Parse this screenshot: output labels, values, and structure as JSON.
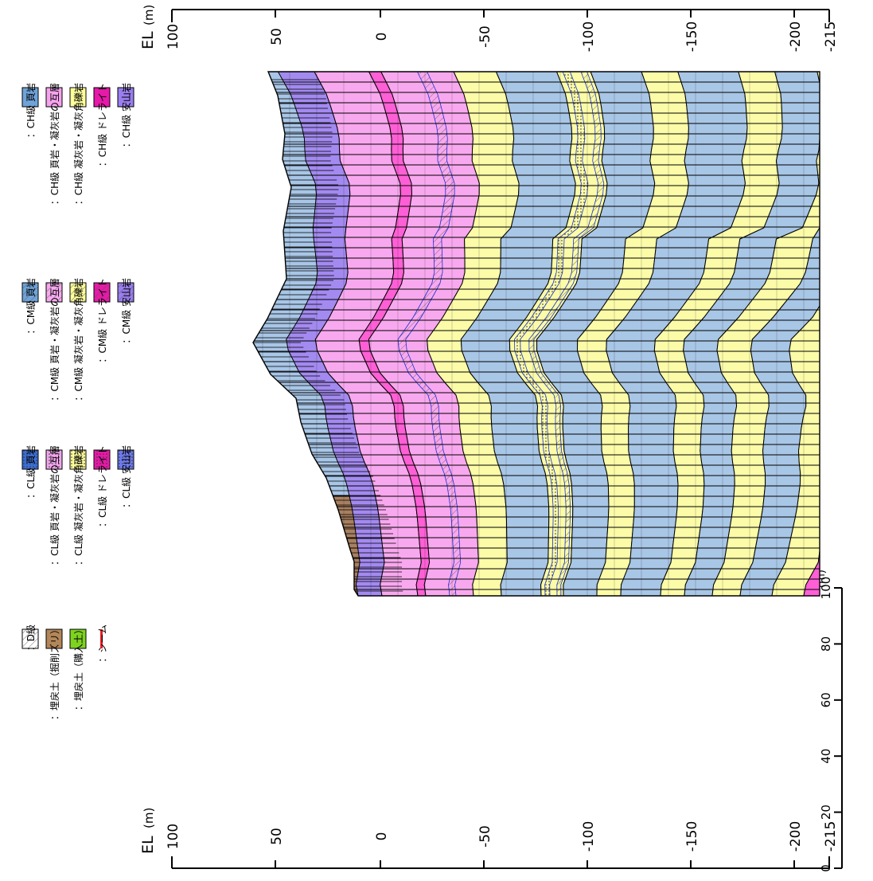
{
  "axis": {
    "el_label": "EL",
    "unit": "(m)",
    "el_ticks": [
      "100",
      "50",
      "0",
      "-50",
      "-100",
      "-150",
      "-200",
      "-215"
    ],
    "scale_ticks": [
      "0",
      "20",
      "40",
      "60",
      "80",
      "100"
    ],
    "scale_unit": "(m)"
  },
  "colors": {
    "ch_shale": "#6fa3d9",
    "cm_shale": "#6fa3d9",
    "cl_shale": "#3b6fd6",
    "ch_interbed": "#f6a3ee",
    "cm_interbed": "#f7a9f0",
    "cl_interbed": "#f2a6ee",
    "ch_tuff": "#ffff9c",
    "cm_tuff": "#ffff9c",
    "cl_tuff": "#ffff9c",
    "ch_dolerite": "#e619a8",
    "cm_dolerite": "#e619a8",
    "cl_dolerite": "#e619a8",
    "ch_andesite": "#9a7ef0",
    "cm_andesite": "#9a7ef0",
    "cl_andesite": "#6f7cf0",
    "d_class": "#ffffff",
    "fill_cut": "#b3875a",
    "fill_bank": "#7ed321",
    "seam": "#ee1b24",
    "band_blue": "#a8c6e6",
    "band_yellow": "#fbfba8",
    "band_pink": "#f8a8ee",
    "band_magenta": "#ff5fd6",
    "band_purple": "#a38af0",
    "band_brown": "#a88060"
  },
  "legend": {
    "columns": [
      [
        {
          "key": "ch_shale",
          "label": "：CH級 頁岩"
        },
        {
          "key": "ch_interbed",
          "label": "：CH級 頁岩・凝灰岩の互層"
        },
        {
          "key": "ch_tuff",
          "label": "：CH級 凝灰岩・凝灰角礫岩"
        },
        {
          "key": "ch_dolerite",
          "label": "：CH級 ドレライト"
        },
        {
          "key": "ch_andesite",
          "label": "：CH級 安山岩"
        }
      ],
      [
        {
          "key": "cm_shale",
          "label": "：CM級 頁岩"
        },
        {
          "key": "cm_interbed",
          "label": "：CM級 頁岩・凝灰岩の互層"
        },
        {
          "key": "cm_tuff",
          "label": "：CM級 凝灰岩・凝灰角礫岩"
        },
        {
          "key": "cm_dolerite",
          "label": "：CM級 ドレライト"
        },
        {
          "key": "cm_andesite",
          "label": "：CM級 安山岩"
        }
      ],
      [
        {
          "key": "cl_shale",
          "label": "：CL級 頁岩"
        },
        {
          "key": "cl_interbed",
          "label": "：CL級 頁岩・凝灰岩の互層"
        },
        {
          "key": "cl_tuff",
          "label": "：CL級 凝灰岩・凝灰角礫岩"
        },
        {
          "key": "cl_dolerite",
          "label": "：CL級 ドレライト"
        },
        {
          "key": "cl_andesite",
          "label": "：CL級 安山岩"
        }
      ],
      [
        {
          "key": "d_class",
          "label": "：D級"
        },
        {
          "key": "fill_cut",
          "label": "：埋戻土（掘削ズリ）"
        },
        {
          "key": "fill_bank",
          "label": "：埋戻土（購入土）"
        },
        {
          "key": "seam",
          "label": "：シーム"
        }
      ]
    ]
  }
}
